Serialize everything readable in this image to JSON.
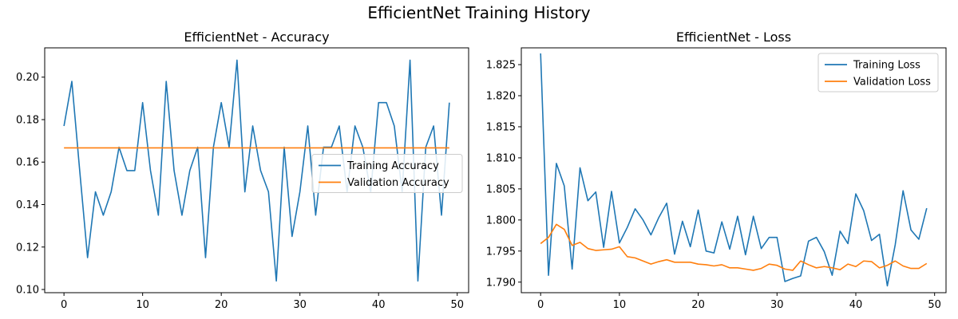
{
  "figure": {
    "title": "EfficientNet Training History"
  },
  "colors": {
    "train": "#1f77b4",
    "val": "#ff7f0e"
  },
  "chart_data": [
    {
      "type": "line",
      "title": "EfficientNet - Accuracy",
      "xlabel": "",
      "ylabel": "",
      "xlim": [
        -2.45,
        51.45
      ],
      "ylim": [
        0.0985,
        0.2138
      ],
      "xticks": [
        0,
        10,
        20,
        30,
        40,
        50
      ],
      "yticks": [
        0.1,
        0.12,
        0.14,
        0.16,
        0.18,
        0.2
      ],
      "ytick_decimals": 2,
      "legend": "center-right",
      "grid": false,
      "x": [
        0,
        1,
        2,
        3,
        4,
        5,
        6,
        7,
        8,
        9,
        10,
        11,
        12,
        13,
        14,
        15,
        16,
        17,
        18,
        19,
        20,
        21,
        22,
        23,
        24,
        25,
        26,
        27,
        28,
        29,
        30,
        31,
        32,
        33,
        34,
        35,
        36,
        37,
        38,
        39,
        40,
        41,
        42,
        43,
        44,
        45,
        46,
        47,
        48,
        49
      ],
      "series": [
        {
          "name": "Training Accuracy",
          "values": [
            0.177,
            0.198,
            0.156,
            0.115,
            0.146,
            0.135,
            0.146,
            0.167,
            0.156,
            0.156,
            0.188,
            0.156,
            0.135,
            0.198,
            0.156,
            0.135,
            0.156,
            0.167,
            0.115,
            0.167,
            0.188,
            0.167,
            0.208,
            0.146,
            0.177,
            0.156,
            0.146,
            0.104,
            0.167,
            0.125,
            0.146,
            0.177,
            0.135,
            0.167,
            0.167,
            0.177,
            0.146,
            0.177,
            0.167,
            0.146,
            0.188,
            0.188,
            0.177,
            0.146,
            0.208,
            0.104,
            0.167,
            0.177,
            0.135,
            0.188
          ]
        },
        {
          "name": "Validation Accuracy",
          "values": [
            0.1667,
            0.1667,
            0.1667,
            0.1667,
            0.1667,
            0.1667,
            0.1667,
            0.1667,
            0.1667,
            0.1667,
            0.1667,
            0.1667,
            0.1667,
            0.1667,
            0.1667,
            0.1667,
            0.1667,
            0.1667,
            0.1667,
            0.1667,
            0.1667,
            0.1667,
            0.1667,
            0.1667,
            0.1667,
            0.1667,
            0.1667,
            0.1667,
            0.1667,
            0.1667,
            0.1667,
            0.1667,
            0.1667,
            0.1667,
            0.1667,
            0.1667,
            0.1667,
            0.1667,
            0.1667,
            0.1667,
            0.1667,
            0.1667,
            0.1667,
            0.1667,
            0.1667,
            0.1667,
            0.1667,
            0.1667,
            0.1667,
            0.1667
          ]
        }
      ]
    },
    {
      "type": "line",
      "title": "EfficientNet - Loss",
      "xlabel": "",
      "ylabel": "",
      "xlim": [
        -2.45,
        51.45
      ],
      "ylim": [
        1.7883,
        1.8277
      ],
      "xticks": [
        0,
        10,
        20,
        30,
        40,
        50
      ],
      "yticks": [
        1.79,
        1.795,
        1.8,
        1.805,
        1.81,
        1.815,
        1.82,
        1.825
      ],
      "ytick_decimals": 3,
      "legend": "top-right",
      "grid": false,
      "x": [
        0,
        1,
        2,
        3,
        4,
        5,
        6,
        7,
        8,
        9,
        10,
        11,
        12,
        13,
        14,
        15,
        16,
        17,
        18,
        19,
        20,
        21,
        22,
        23,
        24,
        25,
        26,
        27,
        28,
        29,
        30,
        31,
        32,
        33,
        34,
        35,
        36,
        37,
        38,
        39,
        40,
        41,
        42,
        43,
        44,
        45,
        46,
        47,
        48,
        49
      ],
      "series": [
        {
          "name": "Training Loss",
          "values": [
            1.8268,
            1.7911,
            1.8091,
            1.8055,
            1.7921,
            1.8084,
            1.8031,
            1.8045,
            1.7956,
            1.8046,
            1.7963,
            1.7988,
            1.8018,
            1.8,
            1.7976,
            1.8004,
            1.8027,
            1.7945,
            1.7998,
            1.7957,
            1.8016,
            1.795,
            1.7947,
            1.7997,
            1.7953,
            1.8006,
            1.7944,
            1.8006,
            1.7954,
            1.7972,
            1.7972,
            1.7901,
            1.7906,
            1.791,
            1.7966,
            1.7972,
            1.7949,
            1.7911,
            1.7982,
            1.7962,
            1.8042,
            1.8015,
            1.7967,
            1.7977,
            1.7894,
            1.796,
            1.8047,
            1.7984,
            1.7969,
            1.8019
          ]
        },
        {
          "name": "Validation Loss",
          "values": [
            1.7962,
            1.7972,
            1.7993,
            1.7985,
            1.7959,
            1.7964,
            1.7954,
            1.7951,
            1.7952,
            1.7953,
            1.7957,
            1.7941,
            1.7939,
            1.7934,
            1.7929,
            1.7933,
            1.7936,
            1.7932,
            1.7932,
            1.7932,
            1.7929,
            1.7928,
            1.7926,
            1.7928,
            1.7923,
            1.7923,
            1.7921,
            1.7919,
            1.7922,
            1.7929,
            1.7927,
            1.7921,
            1.7919,
            1.7934,
            1.7928,
            1.7923,
            1.7925,
            1.7923,
            1.792,
            1.7929,
            1.7925,
            1.7934,
            1.7933,
            1.7923,
            1.7927,
            1.7934,
            1.7926,
            1.7922,
            1.7922,
            1.793
          ]
        }
      ]
    }
  ]
}
